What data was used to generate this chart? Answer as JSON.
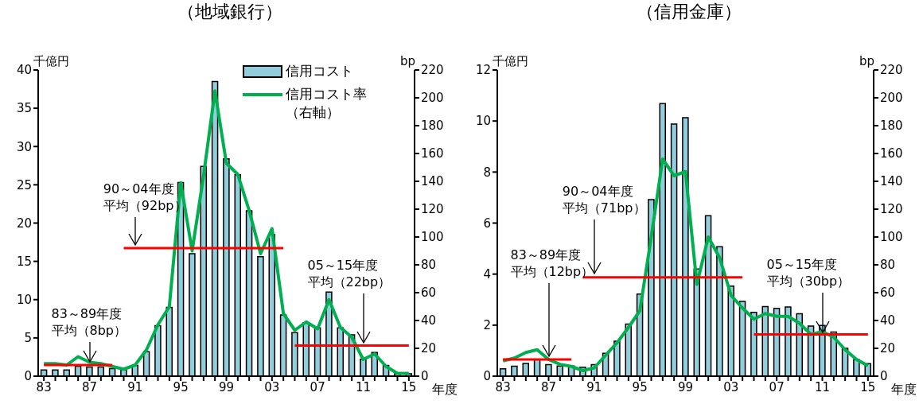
{
  "chart_data": [
    {
      "type": "bar",
      "title": "（地域銀行）",
      "ylabel": "千億円",
      "y2label": "bp",
      "xlabel": "年度",
      "categories": [
        "83",
        null,
        null,
        null,
        "87",
        null,
        null,
        null,
        "91",
        null,
        null,
        null,
        "95",
        null,
        null,
        null,
        "99",
        null,
        null,
        null,
        "03",
        null,
        null,
        null,
        "07",
        null,
        null,
        null,
        "11",
        null,
        null,
        null,
        "15"
      ],
      "ylim": [
        0,
        40
      ],
      "yticks": [
        0,
        5,
        10,
        15,
        20,
        25,
        30,
        35,
        40
      ],
      "y2lim": [
        0,
        220
      ],
      "y2ticks": [
        0,
        20,
        40,
        60,
        80,
        100,
        120,
        140,
        160,
        180,
        200,
        220
      ],
      "legend": "top right",
      "annotations": [
        {
          "text": "83～89年度平均（8bp）",
          "x": "87",
          "y": 1.5
        },
        {
          "text": "90～04年度平均（92bp）",
          "x": "91",
          "y": 16.7
        },
        {
          "text": "05～15年度平均（22bp）",
          "x": "11",
          "y": 4.0
        }
      ],
      "series": [
        {
          "type": "bar",
          "name": "信用コスト",
          "color": "#92cddc",
          "values": [
            0.8,
            0.8,
            0.8,
            1.3,
            1.2,
            1.2,
            1.0,
            0.8,
            1.4,
            3.2,
            6.6,
            9.0,
            25.3,
            16.0,
            27.4,
            38.5,
            28.4,
            26.3,
            21.6,
            15.6,
            18.5,
            8.0,
            5.7,
            7.0,
            6.3,
            11.0,
            6.3,
            5.4,
            2.2,
            3.1,
            1.4,
            0.3,
            0.3
          ]
        },
        {
          "type": "line",
          "name": "信用コスト率（右軸）",
          "color": "#00b050",
          "axis": "y2",
          "values": [
            9,
            9,
            8,
            14,
            10,
            9,
            7,
            5,
            8,
            19,
            37,
            50,
            139,
            90,
            144,
            205,
            153,
            145,
            119,
            88,
            106,
            45,
            33,
            39,
            34,
            55,
            35,
            28,
            12,
            16,
            7,
            2,
            2
          ]
        },
        {
          "type": "line",
          "color": "#ff0000",
          "axis": "y2",
          "values": [
            8,
            8,
            8,
            8,
            8,
            8,
            8,
            null,
            null,
            null,
            null,
            null,
            null,
            null,
            null,
            null,
            null,
            null,
            null,
            null,
            null,
            null,
            null,
            null,
            null,
            null,
            null,
            null,
            null,
            null,
            null,
            null,
            null
          ]
        },
        {
          "type": "line",
          "color": "#ff0000",
          "axis": "y2",
          "values": [
            null,
            null,
            null,
            null,
            null,
            null,
            null,
            92,
            92,
            92,
            92,
            92,
            92,
            92,
            92,
            92,
            92,
            92,
            92,
            92,
            92,
            92,
            null,
            null,
            null,
            null,
            null,
            null,
            null,
            null,
            null,
            null,
            null
          ]
        },
        {
          "type": "line",
          "color": "#ff0000",
          "axis": "y2",
          "values": [
            null,
            null,
            null,
            null,
            null,
            null,
            null,
            null,
            null,
            null,
            null,
            null,
            null,
            null,
            null,
            null,
            null,
            null,
            null,
            null,
            null,
            null,
            22,
            22,
            22,
            22,
            22,
            22,
            22,
            22,
            22,
            22,
            22
          ]
        }
      ]
    },
    {
      "type": "bar",
      "title": "（信用金庫）",
      "ylabel": "千億円",
      "y2label": "bp",
      "xlabel": "年度",
      "categories": [
        "83",
        null,
        null,
        null,
        "87",
        null,
        null,
        null,
        "91",
        null,
        null,
        null,
        "95",
        null,
        null,
        null,
        "99",
        null,
        null,
        null,
        "03",
        null,
        null,
        null,
        "07",
        null,
        null,
        null,
        "11",
        null,
        null,
        null,
        "15"
      ],
      "ylim": [
        0,
        12
      ],
      "yticks": [
        0,
        2,
        4,
        6,
        8,
        10,
        12
      ],
      "y2lim": [
        0,
        220
      ],
      "y2ticks": [
        0,
        20,
        40,
        60,
        80,
        100,
        120,
        140,
        160,
        180,
        200,
        220
      ],
      "annotations": [
        {
          "text": "83～89年度平均（12bp）",
          "x": "87",
          "y": 0.65
        },
        {
          "text": "90～04年度平均（71bp）",
          "x": "91",
          "y": 3.9
        },
        {
          "text": "05～15年度平均（30bp）",
          "x": "11",
          "y": 1.6
        }
      ],
      "series": [
        {
          "type": "bar",
          "color": "#92cddc",
          "values": [
            0.29,
            0.39,
            0.5,
            0.65,
            0.45,
            0.4,
            0.4,
            0.35,
            0.45,
            0.9,
            1.37,
            2.04,
            3.22,
            6.92,
            10.68,
            9.88,
            10.13,
            4.2,
            6.29,
            5.07,
            3.53,
            2.93,
            2.5,
            2.73,
            2.66,
            2.71,
            2.45,
            1.96,
            1.99,
            1.73,
            1.09,
            0.65,
            0.49
          ]
        },
        {
          "type": "line",
          "color": "#00b050",
          "axis": "y2",
          "values": [
            11,
            13,
            17,
            19,
            12,
            8.5,
            7,
            4,
            6,
            15,
            24,
            35,
            47,
            100,
            156,
            144,
            147,
            66,
            100,
            85,
            58,
            49,
            41,
            45,
            43,
            43,
            38,
            30,
            32,
            28,
            19,
            12,
            7.5
          ]
        },
        {
          "type": "line",
          "color": "#ff0000",
          "axis": "y2",
          "values": [
            12,
            12,
            12,
            12,
            12,
            12,
            12,
            null,
            null,
            null,
            null,
            null,
            null,
            null,
            null,
            null,
            null,
            null,
            null,
            null,
            null,
            null,
            null,
            null,
            null,
            null,
            null,
            null,
            null,
            null,
            null,
            null,
            null
          ]
        },
        {
          "type": "line",
          "color": "#ff0000",
          "axis": "y2",
          "values": [
            null,
            null,
            null,
            null,
            null,
            null,
            null,
            71,
            71,
            71,
            71,
            71,
            71,
            71,
            71,
            71,
            71,
            71,
            71,
            71,
            71,
            71,
            null,
            null,
            null,
            null,
            null,
            null,
            null,
            null,
            null,
            null,
            null
          ]
        },
        {
          "type": "line",
          "color": "#ff0000",
          "axis": "y2",
          "values": [
            null,
            null,
            null,
            null,
            null,
            null,
            null,
            null,
            null,
            null,
            null,
            null,
            null,
            null,
            null,
            null,
            null,
            null,
            null,
            null,
            null,
            null,
            30,
            30,
            30,
            30,
            30,
            30,
            30,
            30,
            30,
            30,
            30
          ]
        }
      ]
    }
  ]
}
